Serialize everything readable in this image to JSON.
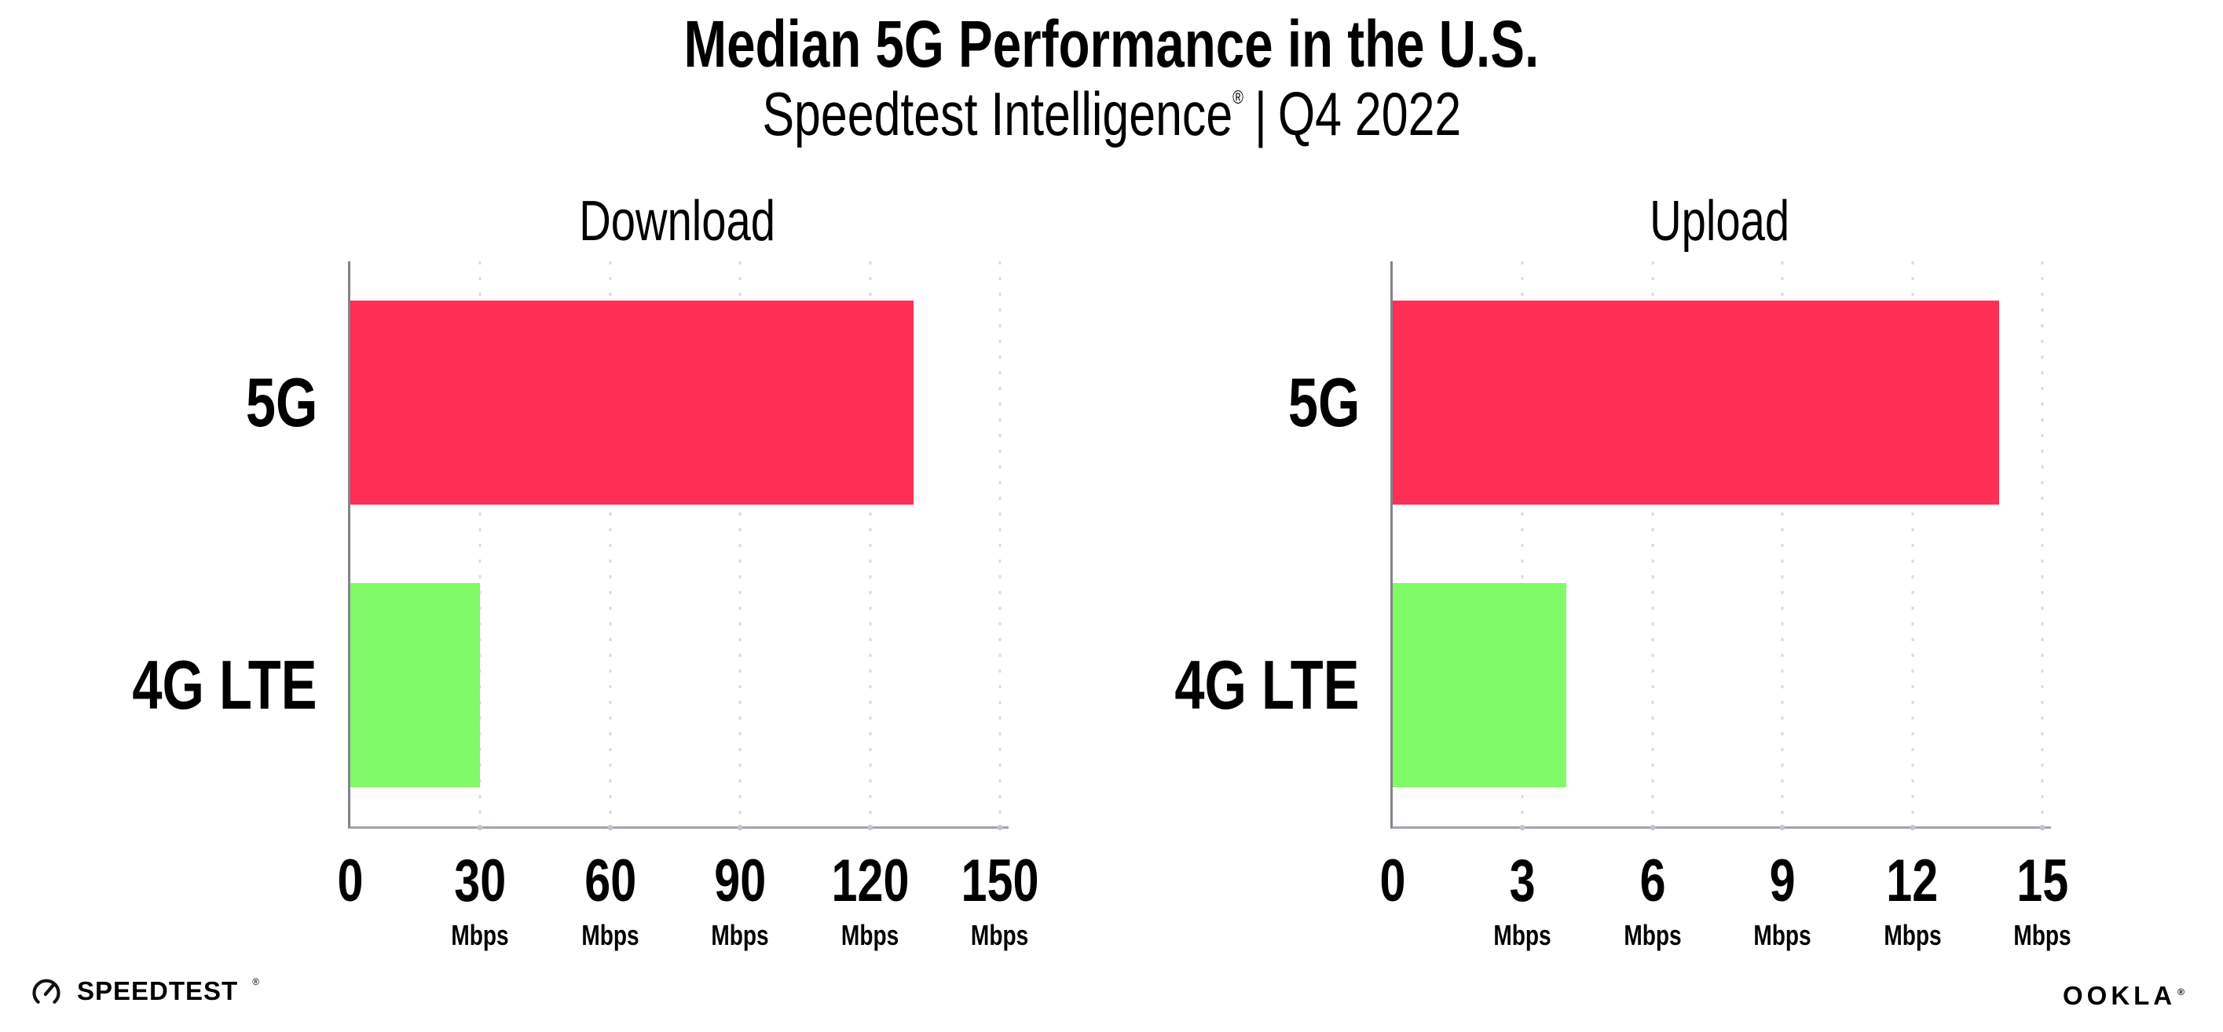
{
  "header": {
    "title": "Median 5G Performance in the U.S.",
    "subtitle_brand": "Speedtest Intelligence",
    "subtitle_registered": "®",
    "subtitle_separator": "|",
    "subtitle_period": "Q4 2022"
  },
  "footer": {
    "speedtest_label": "SPEEDTEST",
    "speedtest_mark": "®",
    "ookla_label": "OOKLA",
    "ookla_mark": "®",
    "speedtest_gauge_icon": "speedtest-gauge-icon"
  },
  "colors": {
    "bar_5g": "#FF2E55",
    "bar_4g_lte": "#80FA66",
    "y_axis": "#83838d",
    "x_axis": "#a2a2a9",
    "gridline": "#dadae7",
    "text": "#000000",
    "background": "#ffffff"
  },
  "chart_data": [
    {
      "type": "bar",
      "orientation": "horizontal",
      "title": "Download",
      "categories": [
        "5G",
        "4G LTE"
      ],
      "values": [
        130,
        30
      ],
      "unit": "Mbps",
      "xlim": [
        0,
        152
      ],
      "xticks": [
        0,
        30,
        60,
        90,
        120,
        150
      ],
      "tick_labels": [
        "0",
        "30",
        "60",
        "90",
        "120",
        "150"
      ],
      "tick_units": [
        "",
        "Mbps",
        "Mbps",
        "Mbps",
        "Mbps",
        "Mbps"
      ],
      "grid": "dotted-vertical",
      "legend": "none",
      "bar_colors": [
        "#FF2E55",
        "#80FA66"
      ]
    },
    {
      "type": "bar",
      "orientation": "horizontal",
      "title": "Upload",
      "categories": [
        "5G",
        "4G LTE"
      ],
      "values": [
        14,
        4
      ],
      "unit": "Mbps",
      "xlim": [
        0,
        15.2
      ],
      "xticks": [
        0,
        3,
        6,
        9,
        12,
        15
      ],
      "tick_labels": [
        "0",
        "3",
        "6",
        "9",
        "12",
        "15"
      ],
      "tick_units": [
        "",
        "Mbps",
        "Mbps",
        "Mbps",
        "Mbps",
        "Mbps"
      ],
      "grid": "dotted-vertical",
      "legend": "none",
      "bar_colors": [
        "#FF2E55",
        "#80FA66"
      ]
    }
  ]
}
